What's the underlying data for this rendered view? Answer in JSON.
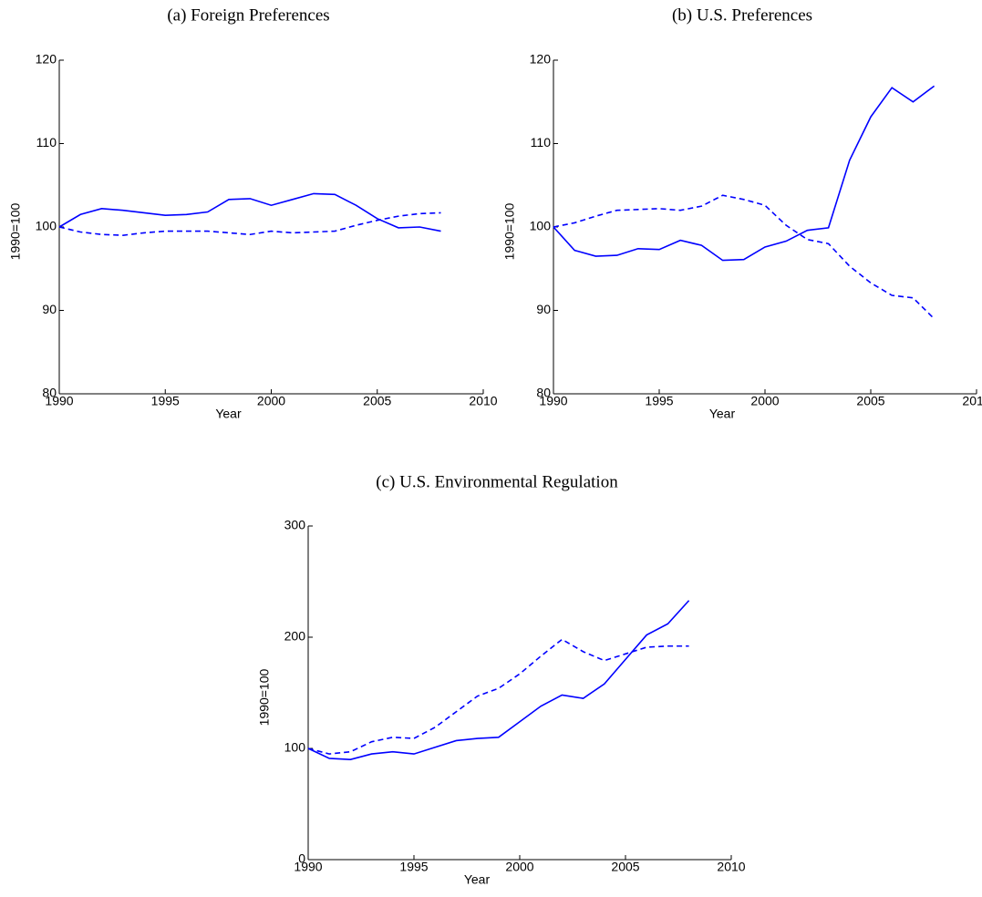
{
  "chart_data": [
    {
      "type": "line",
      "title": "(a) Foreign Preferences",
      "x_label": "Year",
      "y_label": "1990=100",
      "x": [
        1990,
        1991,
        1992,
        1993,
        1994,
        1995,
        1996,
        1997,
        1998,
        1999,
        2000,
        2001,
        2002,
        2003,
        2004,
        2005,
        2006,
        2007,
        2008
      ],
      "xlim": [
        1990,
        2010
      ],
      "xticks": [
        1990,
        1995,
        2000,
        2005,
        2010
      ],
      "ylim": [
        80,
        120
      ],
      "yticks": [
        80,
        90,
        100,
        110,
        120
      ],
      "series": [
        {
          "color": "#0000ff",
          "dash": "solid",
          "values": [
            100,
            101.5,
            102.2,
            102,
            101.7,
            101.4,
            101.5,
            101.8,
            103.3,
            103.4,
            102.6,
            103.3,
            104,
            103.9,
            102.6,
            101,
            99.9,
            100,
            99.5
          ]
        },
        {
          "color": "#0000ff",
          "dash": "dashed",
          "values": [
            100,
            99.4,
            99.1,
            99,
            99.3,
            99.5,
            99.5,
            99.5,
            99.3,
            99.1,
            99.5,
            99.3,
            99.4,
            99.5,
            100.2,
            100.8,
            101.3,
            101.6,
            101.7
          ]
        }
      ]
    },
    {
      "type": "line",
      "title": "(b) U.S. Preferences",
      "x_label": "Year",
      "y_label": "1990=100",
      "x": [
        1990,
        1991,
        1992,
        1993,
        1994,
        1995,
        1996,
        1997,
        1998,
        1999,
        2000,
        2001,
        2002,
        2003,
        2004,
        2005,
        2006,
        2007,
        2008
      ],
      "xlim": [
        1990,
        2010
      ],
      "xticks": [
        1990,
        1995,
        2000,
        2005,
        2010
      ],
      "ylim": [
        80,
        120
      ],
      "yticks": [
        80,
        90,
        100,
        110,
        120
      ],
      "series": [
        {
          "color": "#0000ff",
          "dash": "solid",
          "values": [
            100,
            97.2,
            96.5,
            96.6,
            97.4,
            97.3,
            98.4,
            97.8,
            96,
            96.1,
            97.6,
            98.3,
            99.6,
            99.9,
            108,
            113.2,
            116.7,
            115,
            116.9
          ]
        },
        {
          "color": "#0000ff",
          "dash": "dashed",
          "values": [
            100,
            100.5,
            101.3,
            102,
            102.1,
            102.2,
            102,
            102.5,
            103.8,
            103.3,
            102.6,
            100.2,
            98.5,
            98,
            95.3,
            93.3,
            91.8,
            91.5,
            89
          ]
        }
      ]
    },
    {
      "type": "line",
      "title": "(c) U.S. Environmental Regulation",
      "x_label": "Year",
      "y_label": "1990=100",
      "x": [
        1990,
        1991,
        1992,
        1993,
        1994,
        1995,
        1996,
        1997,
        1998,
        1999,
        2000,
        2001,
        2002,
        2003,
        2004,
        2005,
        2006,
        2007,
        2008
      ],
      "xlim": [
        1990,
        2010
      ],
      "xticks": [
        1990,
        1995,
        2000,
        2005,
        2010
      ],
      "ylim": [
        0,
        300
      ],
      "yticks": [
        0,
        100,
        200,
        300
      ],
      "series": [
        {
          "color": "#0000ff",
          "dash": "solid",
          "values": [
            100,
            91,
            90,
            95,
            97,
            95,
            101,
            107,
            109,
            110,
            124,
            138,
            148,
            145,
            158,
            180,
            202,
            212,
            233
          ]
        },
        {
          "color": "#0000ff",
          "dash": "dashed",
          "values": [
            100,
            95,
            97,
            106,
            110,
            109,
            119,
            133,
            147,
            154,
            167,
            183,
            198,
            187,
            179,
            185,
            191,
            192,
            192
          ]
        }
      ]
    }
  ]
}
